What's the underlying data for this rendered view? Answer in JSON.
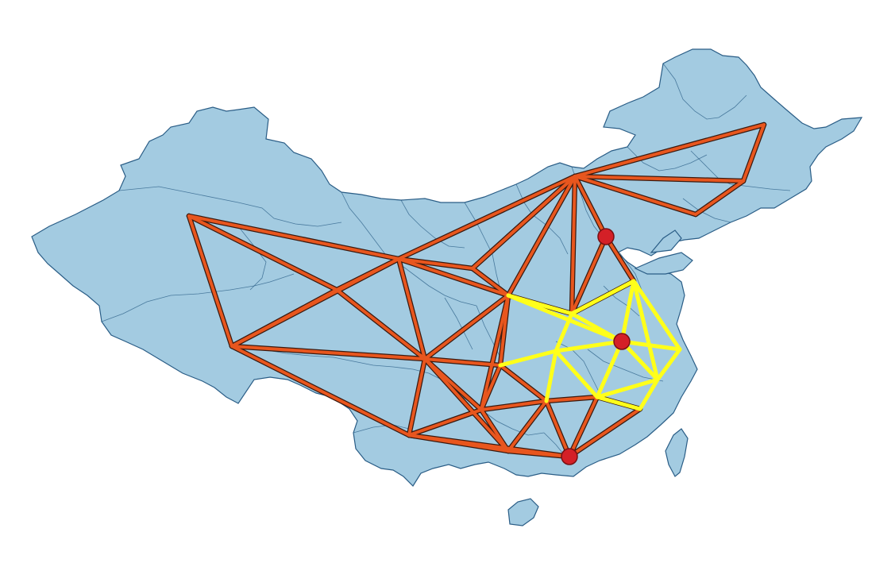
{
  "map": {
    "colors": {
      "land": "#a3cbe1",
      "land_border": "#2a5d86",
      "primary_network": "#e8561e",
      "primary_network_outline": "#3a1a10",
      "secondary_network": "#ffff1a",
      "city_marker": "#d42027",
      "city_marker_outline": "#7a0f12",
      "background": "#ffffff"
    },
    "layers": [
      {
        "name": "country-landmass",
        "type": "polygon"
      },
      {
        "name": "province-boundaries",
        "type": "polyline"
      },
      {
        "name": "trunk-railway-network",
        "type": "polyline",
        "color_key": "primary_network"
      },
      {
        "name": "regional-railway-network",
        "type": "polyline",
        "color_key": "secondary_network"
      },
      {
        "name": "major-city-markers",
        "type": "point",
        "count": 3,
        "color_key": "city_marker"
      }
    ]
  }
}
